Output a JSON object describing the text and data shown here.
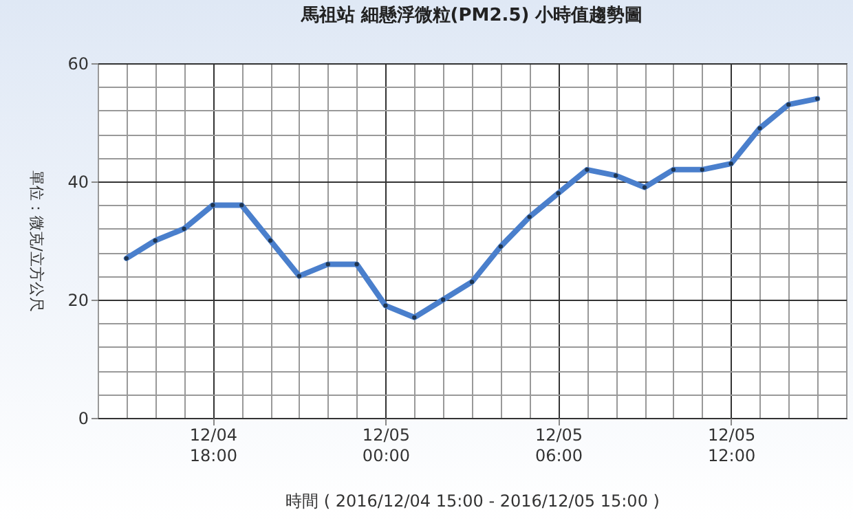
{
  "chart_data": {
    "type": "line",
    "title": "馬祖站  細懸浮微粒(PM2.5) 小時值趨勢圖",
    "xlabel": "時間 ( 2016/12/04 15:00 - 2016/12/05 15:00 )",
    "ylabel": "單位：微克/立方公尺",
    "x": [
      "2016-12-04T15:00",
      "2016-12-04T16:00",
      "2016-12-04T17:00",
      "2016-12-04T18:00",
      "2016-12-04T19:00",
      "2016-12-04T20:00",
      "2016-12-04T21:00",
      "2016-12-04T22:00",
      "2016-12-04T23:00",
      "2016-12-05T00:00",
      "2016-12-05T01:00",
      "2016-12-05T02:00",
      "2016-12-05T03:00",
      "2016-12-05T04:00",
      "2016-12-05T05:00",
      "2016-12-05T06:00",
      "2016-12-05T07:00",
      "2016-12-05T08:00",
      "2016-12-05T09:00",
      "2016-12-05T10:00",
      "2016-12-05T11:00",
      "2016-12-05T12:00",
      "2016-12-05T13:00",
      "2016-12-05T14:00",
      "2016-12-05T15:00"
    ],
    "series": [
      {
        "color": "#4a7fcc",
        "values": [
          27,
          30,
          32,
          36,
          36,
          30,
          24,
          26,
          26,
          19,
          17,
          20,
          23,
          29,
          34,
          38,
          42,
          41,
          39,
          42,
          42,
          43,
          49,
          53,
          54
        ]
      }
    ],
    "xlim": [
      "2016-12-04T14:00",
      "2016-12-05T16:00"
    ],
    "xticks": [
      {
        "value": "2016-12-04T14:00",
        "label": null
      },
      {
        "value": "2016-12-04T15:00",
        "label": null
      },
      {
        "value": "2016-12-04T16:00",
        "label": null
      },
      {
        "value": "2016-12-04T17:00",
        "label": null
      },
      {
        "value": "2016-12-04T18:00",
        "label": "12/04\n18:00"
      },
      {
        "value": "2016-12-04T19:00",
        "label": null
      },
      {
        "value": "2016-12-04T20:00",
        "label": null
      },
      {
        "value": "2016-12-04T21:00",
        "label": null
      },
      {
        "value": "2016-12-04T22:00",
        "label": null
      },
      {
        "value": "2016-12-04T23:00",
        "label": null
      },
      {
        "value": "2016-12-05T00:00",
        "label": "12/05\n00:00"
      },
      {
        "value": "2016-12-05T01:00",
        "label": null
      },
      {
        "value": "2016-12-05T02:00",
        "label": null
      },
      {
        "value": "2016-12-05T03:00",
        "label": null
      },
      {
        "value": "2016-12-05T04:00",
        "label": null
      },
      {
        "value": "2016-12-05T05:00",
        "label": null
      },
      {
        "value": "2016-12-05T06:00",
        "label": "12/05\n06:00"
      },
      {
        "value": "2016-12-05T07:00",
        "label": null
      },
      {
        "value": "2016-12-05T08:00",
        "label": null
      },
      {
        "value": "2016-12-05T09:00",
        "label": null
      },
      {
        "value": "2016-12-05T10:00",
        "label": null
      },
      {
        "value": "2016-12-05T11:00",
        "label": null
      },
      {
        "value": "2016-12-05T12:00",
        "label": "12/05\n12:00"
      },
      {
        "value": "2016-12-05T13:00",
        "label": null
      },
      {
        "value": "2016-12-05T14:00",
        "label": null
      },
      {
        "value": "2016-12-05T15:00",
        "label": null
      },
      {
        "value": "2016-12-05T16:00",
        "label": null
      }
    ],
    "ylim": [
      0,
      60
    ],
    "yticks": [
      0,
      {
        "value": 4,
        "label": null
      },
      {
        "value": 8,
        "label": null
      },
      {
        "value": 12,
        "label": null
      },
      {
        "value": 16,
        "label": null
      },
      20,
      {
        "value": 24,
        "label": null
      },
      {
        "value": 28,
        "label": null
      },
      {
        "value": 32,
        "label": null
      },
      {
        "value": 36,
        "label": null
      },
      40,
      {
        "value": 44,
        "label": null
      },
      {
        "value": 48,
        "label": null
      },
      {
        "value": 52,
        "label": null
      },
      {
        "value": 56,
        "label": null
      },
      60
    ],
    "grid": true,
    "marker": "circle",
    "line_style": "solid"
  }
}
